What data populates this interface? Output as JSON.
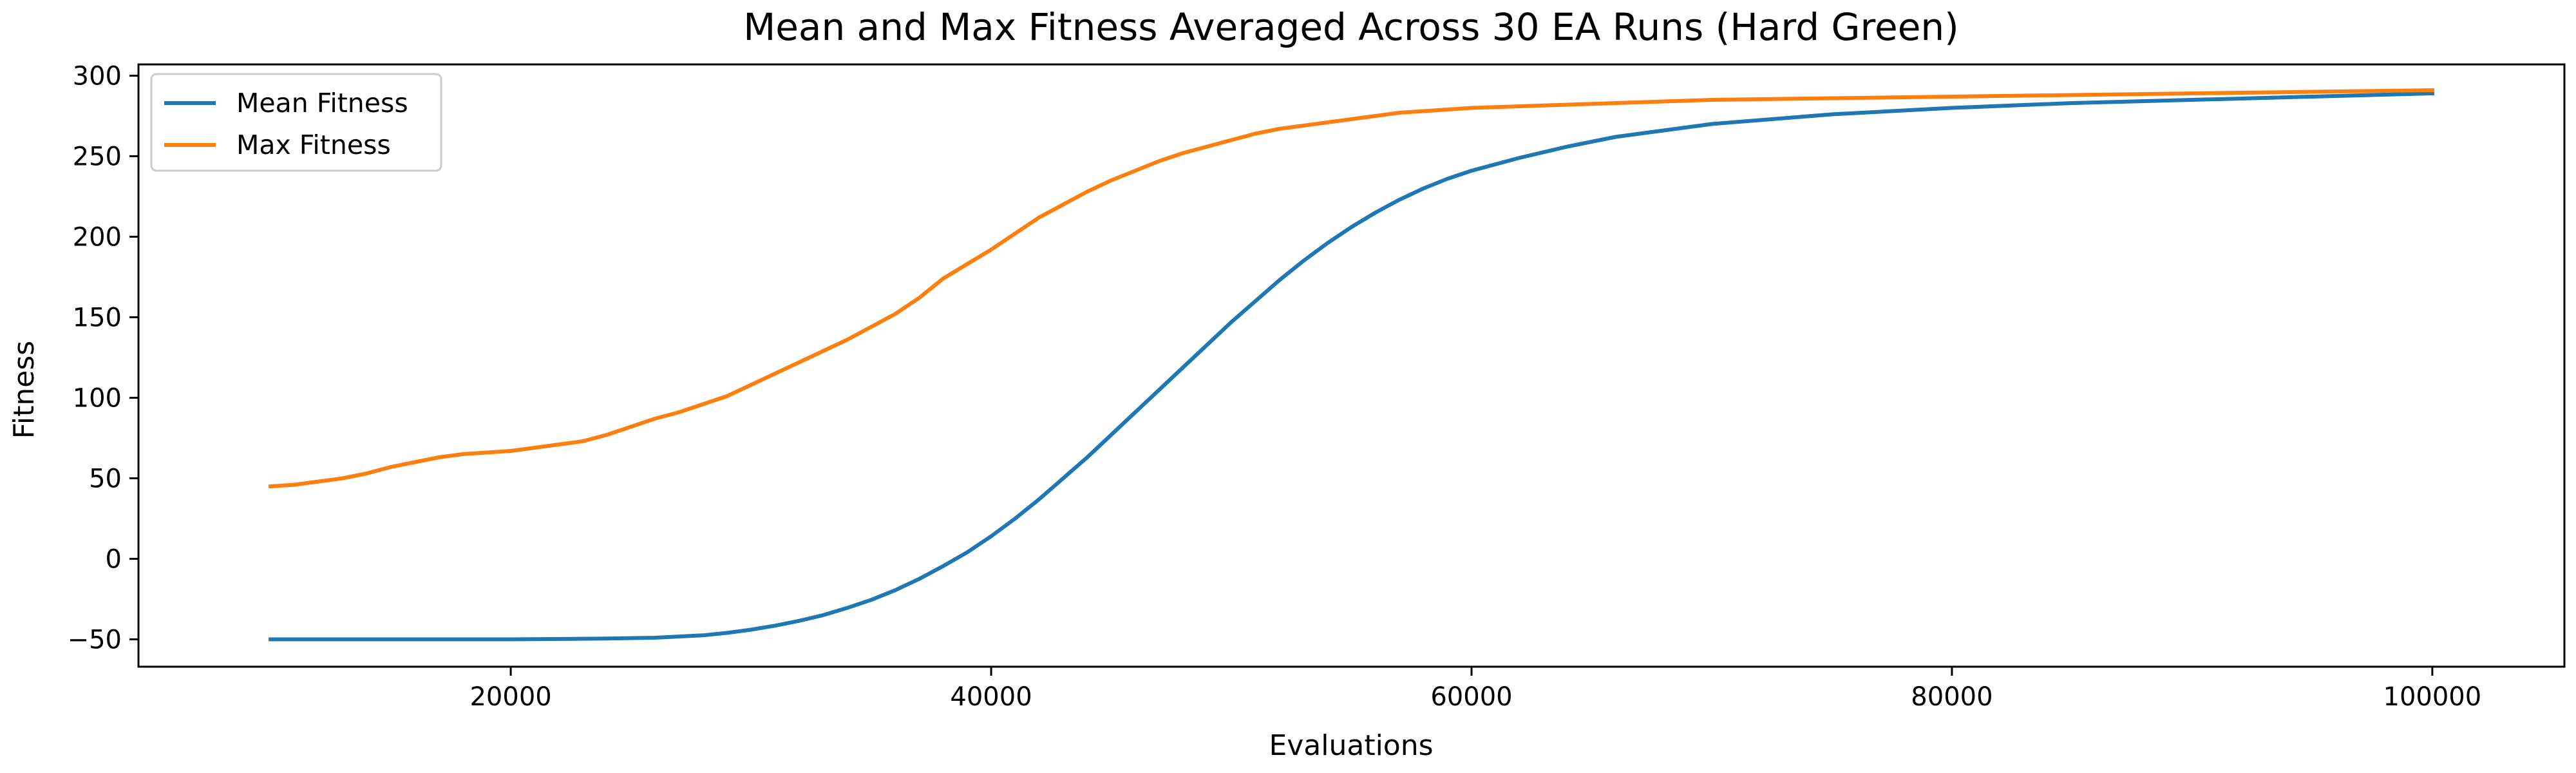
{
  "chart_data": {
    "type": "line",
    "title": "Mean and Max Fitness Averaged Across 30 EA Runs (Hard Green)",
    "xlabel": "Evaluations",
    "ylabel": "Fitness",
    "xlim": [
      4500,
      105500
    ],
    "ylim": [
      -67,
      307
    ],
    "xticks": [
      20000,
      40000,
      60000,
      80000,
      100000
    ],
    "yticks": [
      -50,
      0,
      50,
      100,
      150,
      200,
      250,
      300
    ],
    "grid": false,
    "legend": "top-left",
    "series": [
      {
        "name": "Mean Fitness",
        "color": "#1f77b4",
        "x": [
          10000,
          20000,
          24000,
          26000,
          28000,
          29000,
          30000,
          31000,
          32000,
          33000,
          34000,
          35000,
          36000,
          37000,
          38000,
          39000,
          40000,
          41000,
          42000,
          43000,
          44000,
          45000,
          46000,
          47000,
          48000,
          49000,
          50000,
          51000,
          52000,
          53000,
          54000,
          55000,
          56000,
          57000,
          58000,
          59000,
          60000,
          62000,
          64000,
          66000,
          68000,
          70000,
          75000,
          80000,
          85000,
          90000,
          95000,
          100000
        ],
        "y": [
          -50,
          -50,
          -49.5,
          -49,
          -47.5,
          -46,
          -44,
          -41.5,
          -38.5,
          -35,
          -30.5,
          -25.5,
          -19.5,
          -12.5,
          -4.5,
          4,
          14,
          25,
          37,
          50,
          63,
          77,
          91,
          105,
          119,
          133,
          147,
          160,
          173,
          185,
          196,
          206,
          215,
          223,
          230,
          236,
          241,
          249,
          256,
          262,
          266,
          270,
          276,
          280,
          283,
          285,
          287,
          289
        ]
      },
      {
        "name": "Max Fitness",
        "color": "#ff7f0e",
        "x": [
          10000,
          11000,
          12000,
          13000,
          14000,
          15000,
          16000,
          17000,
          18000,
          19000,
          20000,
          21000,
          22000,
          23000,
          24000,
          25000,
          26000,
          27000,
          28000,
          29000,
          30000,
          31000,
          32000,
          33000,
          34000,
          35000,
          36000,
          37000,
          38000,
          39000,
          40000,
          41000,
          42000,
          43000,
          44000,
          45000,
          46000,
          47000,
          48000,
          49000,
          50000,
          51000,
          52000,
          53000,
          54000,
          55000,
          56000,
          57000,
          58000,
          59000,
          60000,
          62000,
          64000,
          66000,
          68000,
          70000,
          75000,
          80000,
          85000,
          90000,
          95000,
          100000
        ],
        "y": [
          45,
          46,
          48,
          50,
          53,
          57,
          60,
          63,
          65,
          66,
          67,
          69,
          71,
          73,
          77,
          82,
          87,
          91,
          96,
          101,
          108,
          115,
          122,
          129,
          136,
          144,
          152,
          162,
          174,
          183,
          192,
          202,
          212,
          220,
          228,
          235,
          241,
          247,
          252,
          256,
          260,
          264,
          267,
          269,
          271,
          273,
          275,
          277,
          278,
          279,
          280,
          281,
          282,
          283,
          284,
          285,
          286,
          287,
          288,
          289,
          290,
          291
        ]
      }
    ]
  }
}
